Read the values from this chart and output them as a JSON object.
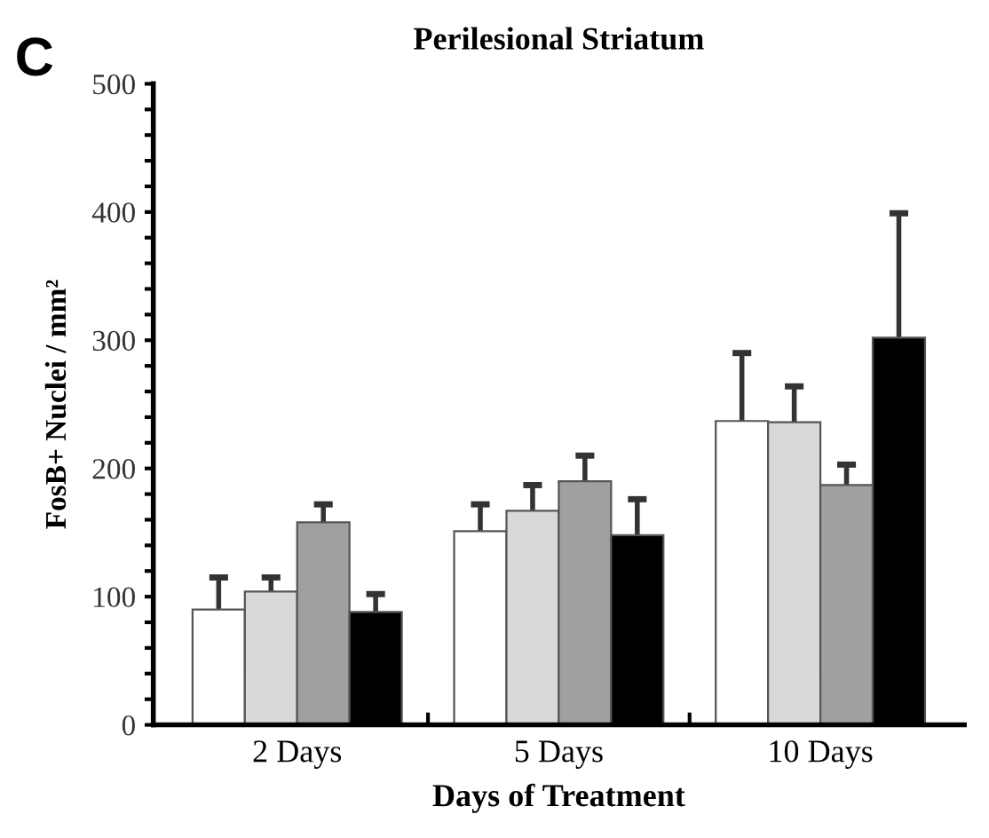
{
  "chart_data": {
    "type": "bar",
    "title": "Perilesional Striatum",
    "xlabel": "Days of Treatment",
    "ylabel": "FosB+ Nuclei / mm²",
    "annotations": [
      "C"
    ],
    "categories": [
      "2 Days",
      "5 Days",
      "10 Days"
    ],
    "series": [
      {
        "color": "#ffffff",
        "values": [
          90,
          151,
          237
        ],
        "errors": [
          [
            90,
            115
          ],
          [
            151,
            172
          ],
          [
            237,
            290
          ]
        ]
      },
      {
        "color": "#d9d9d9",
        "values": [
          104,
          167,
          236
        ],
        "errors": [
          [
            104,
            115
          ],
          [
            167,
            187
          ],
          [
            236,
            264
          ]
        ]
      },
      {
        "color": "#a0a0a0",
        "values": [
          158,
          190,
          187
        ],
        "errors": [
          [
            158,
            172
          ],
          [
            190,
            210
          ],
          [
            187,
            203
          ]
        ]
      },
      {
        "color": "#000000",
        "values": [
          88,
          148,
          302
        ],
        "errors": [
          [
            88,
            102
          ],
          [
            148,
            176
          ],
          [
            302,
            399
          ]
        ]
      }
    ],
    "ylim": [
      0,
      500
    ],
    "yticks": [
      0,
      {
        "value": 20,
        "label": null
      },
      {
        "value": 40,
        "label": null
      },
      {
        "value": 60,
        "label": null
      },
      {
        "value": 80,
        "label": null
      },
      100,
      {
        "value": 120,
        "label": null
      },
      {
        "value": 140,
        "label": null
      },
      {
        "value": 160,
        "label": null
      },
      {
        "value": 180,
        "label": null
      },
      200,
      {
        "value": 220,
        "label": null
      },
      {
        "value": 240,
        "label": null
      },
      {
        "value": 260,
        "label": null
      },
      {
        "value": 280,
        "label": null
      },
      300,
      {
        "value": 320,
        "label": null
      },
      {
        "value": 340,
        "label": null
      },
      {
        "value": 360,
        "label": null
      },
      {
        "value": 380,
        "label": null
      },
      400,
      {
        "value": 420,
        "label": null
      },
      {
        "value": 440,
        "label": null
      },
      {
        "value": 460,
        "label": null
      },
      {
        "value": 480,
        "label": null
      },
      500
    ],
    "grid": false
  }
}
